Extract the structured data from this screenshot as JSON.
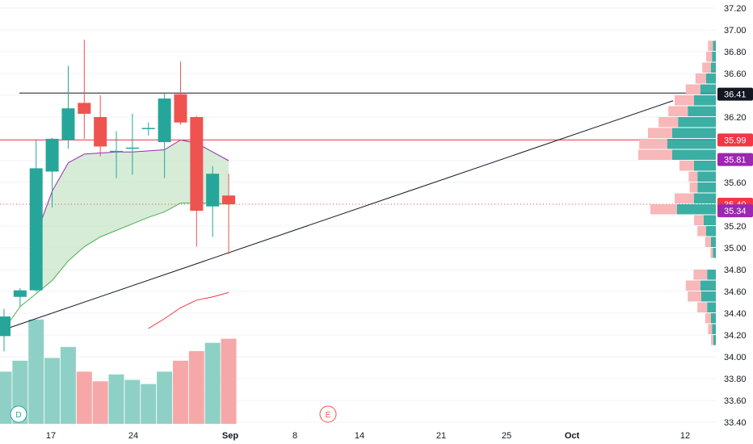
{
  "chart_data": {
    "type": "candlestick",
    "price_axis": {
      "ticks": [
        "37.20",
        "37.00",
        "36.80",
        "36.60",
        "36.40",
        "36.20",
        "36.00",
        "35.80",
        "35.60",
        "35.40",
        "35.20",
        "35.00",
        "34.80",
        "34.60",
        "34.40",
        "34.20",
        "34.00",
        "33.80",
        "33.60",
        "33.40"
      ],
      "range": [
        33.4,
        37.25
      ]
    },
    "time_axis": {
      "labels": [
        "17",
        "24",
        "Sep",
        "8",
        "14",
        "21",
        "25",
        "Oct",
        "12"
      ]
    },
    "candles": [
      {
        "o": 34.19,
        "h": 34.44,
        "l": 34.05,
        "c": 34.37
      },
      {
        "o": 34.55,
        "h": 34.63,
        "l": 34.46,
        "c": 34.61
      },
      {
        "o": 34.61,
        "h": 35.99,
        "l": 34.6,
        "c": 35.73
      },
      {
        "o": 35.7,
        "h": 36.01,
        "l": 35.37,
        "c": 36.0
      },
      {
        "o": 35.99,
        "h": 36.67,
        "l": 35.91,
        "c": 36.28
      },
      {
        "o": 36.33,
        "h": 36.91,
        "l": 36.0,
        "c": 36.23
      },
      {
        "o": 36.2,
        "h": 36.4,
        "l": 35.84,
        "c": 35.93
      },
      {
        "o": 35.88,
        "h": 36.07,
        "l": 35.64,
        "c": 35.89
      },
      {
        "o": 35.91,
        "h": 36.23,
        "l": 35.67,
        "c": 35.92
      },
      {
        "o": 36.09,
        "h": 36.15,
        "l": 36.03,
        "c": 36.1
      },
      {
        "o": 35.97,
        "h": 36.42,
        "l": 35.64,
        "c": 36.37
      },
      {
        "o": 36.41,
        "h": 36.71,
        "l": 36.13,
        "c": 36.15
      },
      {
        "o": 36.2,
        "h": 36.21,
        "l": 35.01,
        "c": 35.34
      },
      {
        "o": 35.38,
        "h": 35.75,
        "l": 35.1,
        "c": 35.68
      },
      {
        "o": 35.48,
        "h": 35.68,
        "l": 34.94,
        "c": 35.4
      }
    ],
    "moving_averages": [
      {
        "name": "ma-fast",
        "color": "#9c27b0",
        "values": [
          null,
          null,
          35.12,
          35.52,
          35.78,
          35.86,
          35.87,
          35.88,
          35.88,
          35.89,
          35.9,
          35.99,
          35.96,
          35.88,
          35.8
        ]
      },
      {
        "name": "ma-mid",
        "color": "#4caf50",
        "values": [
          34.25,
          34.46,
          34.58,
          34.7,
          34.88,
          35.01,
          35.1,
          35.16,
          35.22,
          35.28,
          35.33,
          35.41,
          35.41,
          35.41,
          35.4
        ]
      },
      {
        "name": "ma-slow",
        "color": "#f23645",
        "values": [
          null,
          null,
          null,
          null,
          null,
          null,
          null,
          null,
          null,
          34.26,
          34.35,
          34.45,
          34.52,
          34.55,
          34.59
        ]
      }
    ],
    "volume": [
      0.38,
      0.46,
      0.76,
      0.48,
      0.56,
      0.38,
      0.31,
      0.36,
      0.32,
      0.29,
      0.38,
      0.46,
      0.53,
      0.59,
      0.62
    ],
    "price_lines": [
      {
        "name": "resistance",
        "value": 36.42,
        "color": "#131722"
      },
      {
        "name": "red-level",
        "value": 35.99,
        "color": "#f23645"
      }
    ],
    "trend_line": {
      "from": {
        "bar": 0,
        "price": 34.25
      },
      "to": {
        "bar": 35,
        "price": 36.35
      }
    },
    "price_tags": [
      {
        "label": "36.41",
        "value": 36.41,
        "color": "#131722"
      },
      {
        "label": "35.99",
        "value": 35.99,
        "color": "#f23645"
      },
      {
        "label": "35.81",
        "value": 35.81,
        "color": "#9c27b0"
      },
      {
        "label": "35.40",
        "value": 35.4,
        "color": "#f23645"
      },
      {
        "label": "35.34",
        "value": 35.34,
        "color": "#9c27b0"
      }
    ],
    "volume_profile": [
      {
        "p": 36.85,
        "up": 0.06,
        "down": 0.1
      },
      {
        "p": 36.75,
        "up": 0.08,
        "down": 0.12
      },
      {
        "p": 36.65,
        "up": 0.1,
        "down": 0.18
      },
      {
        "p": 36.55,
        "up": 0.2,
        "down": 0.22
      },
      {
        "p": 36.45,
        "up": 0.32,
        "down": 0.3
      },
      {
        "p": 36.35,
        "up": 0.45,
        "down": 0.4
      },
      {
        "p": 36.25,
        "up": 0.58,
        "down": 0.4
      },
      {
        "p": 36.15,
        "up": 0.78,
        "down": 0.4
      },
      {
        "p": 36.05,
        "up": 0.9,
        "down": 0.5
      },
      {
        "p": 35.95,
        "up": 1.0,
        "down": 0.58
      },
      {
        "p": 35.85,
        "up": 0.9,
        "down": 0.7
      },
      {
        "p": 35.75,
        "up": 0.45,
        "down": 0.3
      },
      {
        "p": 35.65,
        "up": 0.38,
        "down": 0.18
      },
      {
        "p": 35.55,
        "up": 0.38,
        "down": 0.16
      },
      {
        "p": 35.45,
        "up": 0.45,
        "down": 0.4
      },
      {
        "p": 35.35,
        "up": 0.8,
        "down": 0.55
      },
      {
        "p": 35.25,
        "up": 0.25,
        "down": 0.2
      },
      {
        "p": 35.15,
        "up": 0.2,
        "down": 0.18
      },
      {
        "p": 35.05,
        "up": 0.1,
        "down": 0.12
      },
      {
        "p": 34.95,
        "up": 0.06,
        "down": 0.05
      },
      {
        "p": 34.75,
        "up": 0.18,
        "down": 0.28
      },
      {
        "p": 34.65,
        "up": 0.32,
        "down": 0.3
      },
      {
        "p": 34.55,
        "up": 0.3,
        "down": 0.28
      },
      {
        "p": 34.45,
        "up": 0.18,
        "down": 0.2
      },
      {
        "p": 34.35,
        "up": 0.1,
        "down": 0.12
      },
      {
        "p": 34.25,
        "up": 0.08,
        "down": 0.08
      },
      {
        "p": 34.15,
        "up": 0.05,
        "down": 0.05
      }
    ],
    "markers": [
      {
        "label": "D",
        "type": "dividends"
      },
      {
        "label": "E",
        "type": "earnings"
      }
    ]
  },
  "colors": {
    "up": "#26a69a",
    "down": "#ef5350",
    "up_volume": "#8fd0c6",
    "down_volume": "#f6a8a8",
    "profile_up": "#26a69a",
    "profile_down": "#f8b7b8",
    "profile_neutral": "#b2b5be",
    "cloud": "#c8e6c9",
    "grid": "#f0f3fa",
    "axis_text": "#131722"
  }
}
